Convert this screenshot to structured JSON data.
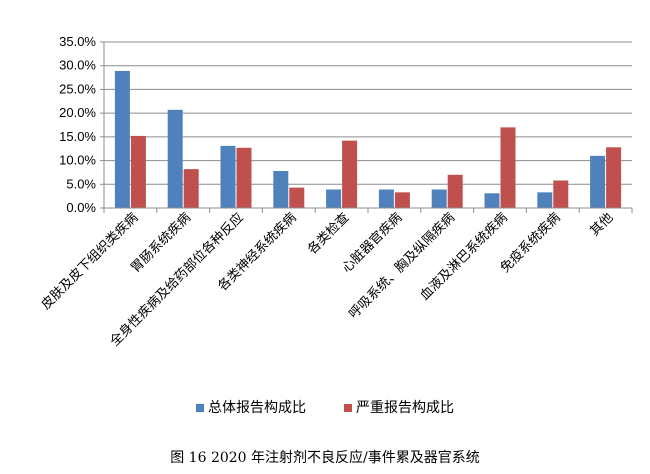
{
  "chart_data": {
    "type": "bar",
    "categories": [
      "皮肤及皮下组织类疾病",
      "胃肠系统疾病",
      "全身性疾病及给药部位各种反应",
      "各类神经系统疾病",
      "各类检查",
      "心脏器官疾病",
      "呼吸系统、胸及纵隔疾病",
      "血液及淋巴系统疾病",
      "免疫系统疾病",
      "其他"
    ],
    "series": [
      {
        "name": "总体报告构成比",
        "values": [
          28.9,
          20.7,
          13.1,
          7.8,
          3.9,
          3.9,
          3.9,
          3.1,
          3.3,
          11.0
        ]
      },
      {
        "name": "严重报告构成比",
        "values": [
          15.2,
          8.2,
          12.7,
          4.3,
          14.2,
          3.3,
          7.0,
          17.0,
          5.8,
          12.8
        ]
      }
    ],
    "y_ticks": [
      "0.0%",
      "5.0%",
      "10.0%",
      "15.0%",
      "20.0%",
      "25.0%",
      "30.0%",
      "35.0%"
    ],
    "ylim": [
      0,
      35
    ],
    "grid": true,
    "legend_position": "bottom",
    "colors": [
      "#4F81BD",
      "#C0504D"
    ],
    "gridline_color": "#8c8c8c",
    "caption": "图 16   2020 年注射剂不良反应/事件累及器官系统"
  }
}
